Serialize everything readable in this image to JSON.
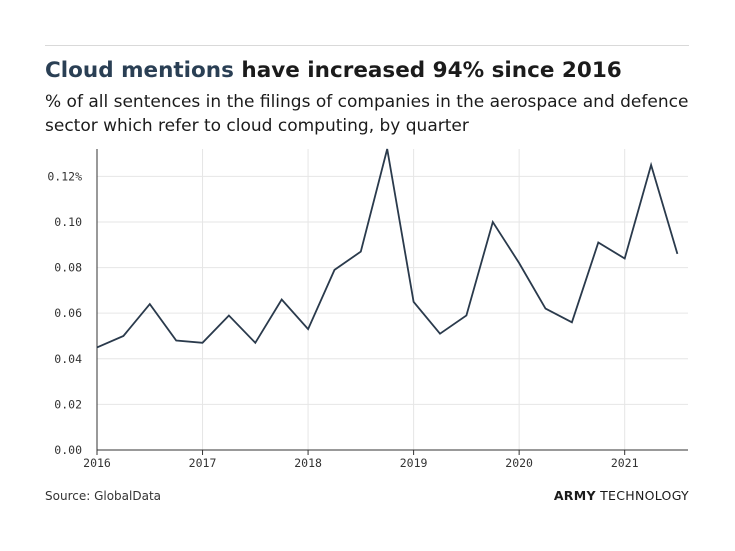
{
  "header": {
    "title_highlight": "Cloud mentions",
    "title_rest": " have increased 94% since 2016",
    "subtitle": "% of all sentences in the filings of companies in the aerospace and defence sector which refer to cloud computing, by quarter"
  },
  "footer": {
    "source": "Source: GlobalData",
    "brand_bold": "ARMY",
    "brand_light": " TECHNOLOGY"
  },
  "colors": {
    "line": "#2a3a4c",
    "grid": "#e6e6e6",
    "axis": "#333333",
    "highlight": "#2a3f54"
  },
  "chart_data": {
    "type": "line",
    "title": "Cloud mentions have increased 94% since 2016",
    "xlabel": "",
    "ylabel": "",
    "x": [
      2016.0,
      2016.25,
      2016.5,
      2016.75,
      2017.0,
      2017.25,
      2017.5,
      2017.75,
      2018.0,
      2018.25,
      2018.5,
      2018.75,
      2019.0,
      2019.25,
      2019.5,
      2019.75,
      2020.0,
      2020.25,
      2020.5,
      2020.75,
      2021.0,
      2021.25,
      2021.5
    ],
    "series": [
      {
        "name": "Cloud mentions",
        "values": [
          0.045,
          0.05,
          0.064,
          0.048,
          0.047,
          0.059,
          0.047,
          0.066,
          0.053,
          0.079,
          0.087,
          0.132,
          0.065,
          0.051,
          0.059,
          0.1,
          0.082,
          0.062,
          0.056,
          0.091,
          0.084,
          0.125,
          0.086
        ]
      }
    ],
    "xlim": [
      2016.0,
      2021.6
    ],
    "ylim": [
      0,
      0.132
    ],
    "y_ticks": [
      0,
      0.02,
      0.04,
      0.06,
      0.08,
      0.1,
      0.12
    ],
    "y_tick_labels": [
      "0.00",
      "0.02",
      "0.04",
      "0.06",
      "0.08",
      "0.10",
      "0.12%"
    ],
    "x_ticks": [
      2016,
      2017,
      2018,
      2019,
      2020,
      2021
    ],
    "x_tick_labels": [
      "2016",
      "2017",
      "2018",
      "2019",
      "2020",
      "2021"
    ],
    "grid": true
  }
}
